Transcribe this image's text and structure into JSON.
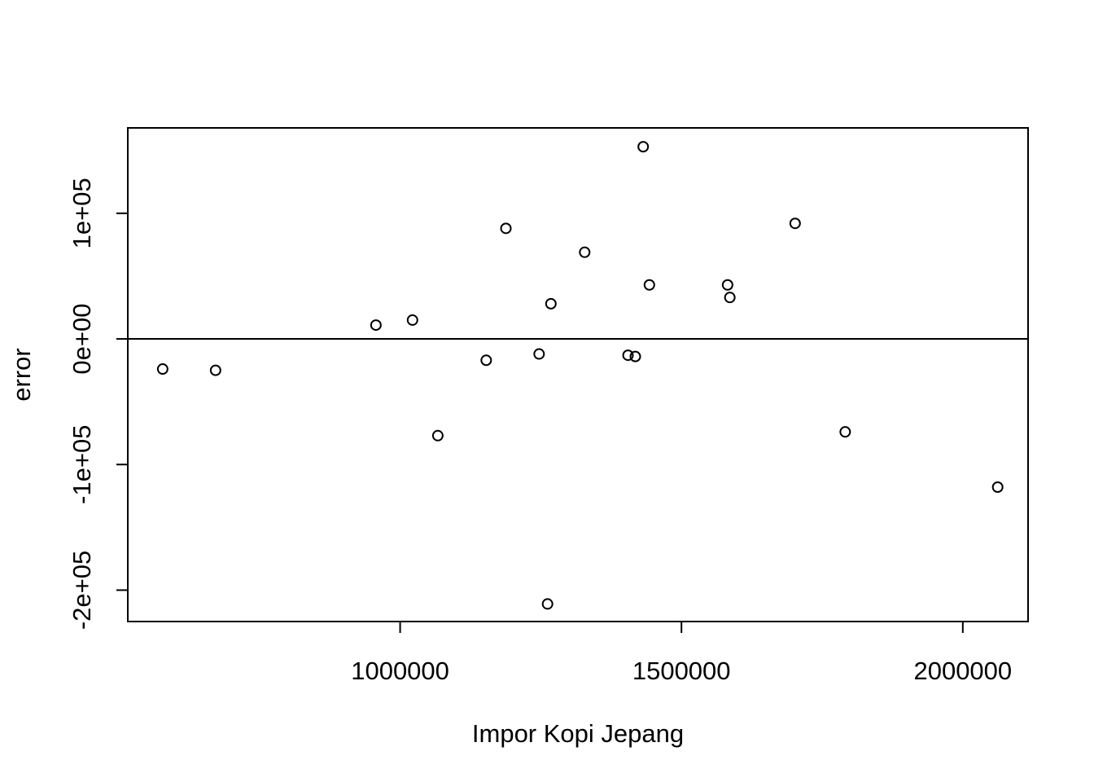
{
  "chart_data": {
    "type": "scatter",
    "xlabel": "Impor Kopi Jepang",
    "ylabel": "error",
    "xlim": [
      516000,
      2116000
    ],
    "ylim": [
      -225000,
      168000
    ],
    "x_ticks": [
      {
        "value": 1000000,
        "label": "1000000"
      },
      {
        "value": 1500000,
        "label": "1500000"
      },
      {
        "value": 2000000,
        "label": "2000000"
      }
    ],
    "y_ticks": [
      {
        "value": -200000,
        "label": "-2e+05"
      },
      {
        "value": -100000,
        "label": "-1e+05"
      },
      {
        "value": 0,
        "label": "0e+00"
      },
      {
        "value": 100000,
        "label": "1e+05"
      }
    ],
    "reference_line": {
      "y": 0
    },
    "grid": false,
    "legend": "none",
    "points": [
      {
        "x": 578000,
        "y": -24000
      },
      {
        "x": 672000,
        "y": -25000
      },
      {
        "x": 957000,
        "y": 11000
      },
      {
        "x": 1022000,
        "y": 15000
      },
      {
        "x": 1067000,
        "y": -77000
      },
      {
        "x": 1153000,
        "y": -17000
      },
      {
        "x": 1188000,
        "y": 88000
      },
      {
        "x": 1247000,
        "y": -12000
      },
      {
        "x": 1262000,
        "y": -211000
      },
      {
        "x": 1268000,
        "y": 28000
      },
      {
        "x": 1328000,
        "y": 69000
      },
      {
        "x": 1405000,
        "y": -13000
      },
      {
        "x": 1418000,
        "y": -14000
      },
      {
        "x": 1432000,
        "y": 153000
      },
      {
        "x": 1443000,
        "y": 43000
      },
      {
        "x": 1582000,
        "y": 43000
      },
      {
        "x": 1586000,
        "y": 33000
      },
      {
        "x": 1702000,
        "y": 92000
      },
      {
        "x": 1791000,
        "y": -74000
      },
      {
        "x": 2062000,
        "y": -118000
      }
    ]
  }
}
